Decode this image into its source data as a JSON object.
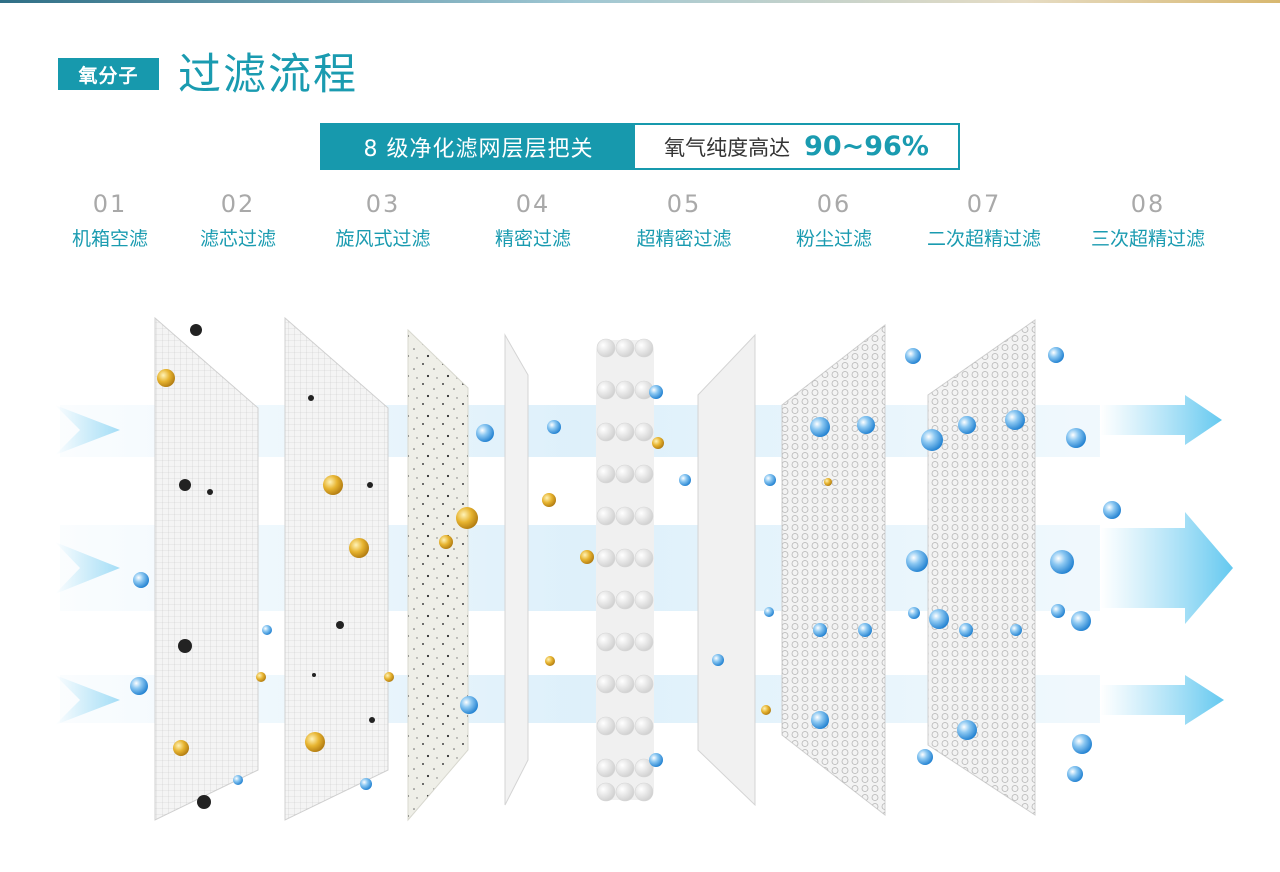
{
  "header": {
    "tag": "氧分子",
    "title": "过滤流程"
  },
  "banner": {
    "left_text": "8 级净化滤网层层把关",
    "right_text": "氧气纯度高达",
    "percentage": "90~96%"
  },
  "steps": [
    {
      "num": "01",
      "label": "机箱空滤"
    },
    {
      "num": "02",
      "label": "滤芯过滤"
    },
    {
      "num": "03",
      "label": "旋风式过滤"
    },
    {
      "num": "04",
      "label": "精密过滤"
    },
    {
      "num": "05",
      "label": "超精密过滤"
    },
    {
      "num": "06",
      "label": "粉尘过滤"
    },
    {
      "num": "07",
      "label": "二次超精过滤"
    },
    {
      "num": "08",
      "label": "三次超精过滤"
    }
  ],
  "colors": {
    "accent": "#1799ad",
    "water": "#3a8fd8",
    "gold": "#d9a520",
    "dust": "#222222"
  }
}
